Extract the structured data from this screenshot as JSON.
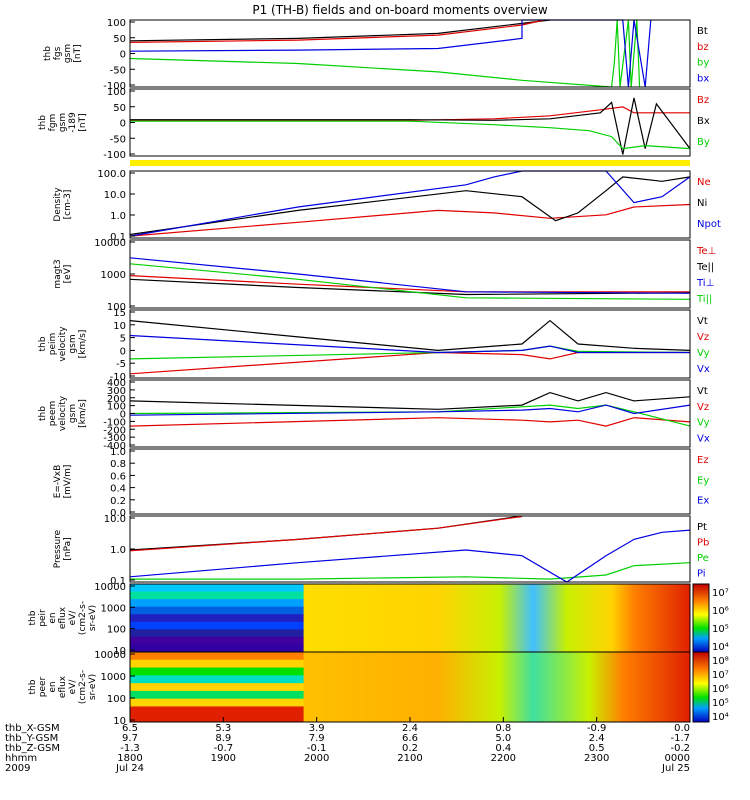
{
  "title": "P1 (TH-B) fields and on-board moments overview",
  "colors": {
    "black": "#000000",
    "red": "#e00000",
    "green": "#00d000",
    "blue": "#0000e0",
    "yellow": "#ffee00"
  },
  "chart_data": [
    {
      "type": "line",
      "ylabel": [
        "thb",
        "fgs",
        "gsm",
        "[nT]"
      ],
      "yticks": [
        "100",
        "50",
        "0",
        "-50",
        "-100"
      ],
      "ylim": [
        -100,
        100
      ],
      "legend": [
        {
          "label": "Bt",
          "color": "black"
        },
        {
          "label": "bz",
          "color": "red"
        },
        {
          "label": "by",
          "color": "green"
        },
        {
          "label": "bx",
          "color": "blue"
        }
      ],
      "series": [
        {
          "name": "Bt",
          "x": [
            0.0,
            0.3,
            0.55,
            0.7,
            0.75
          ],
          "y": [
            38,
            45,
            60,
            90,
            100
          ]
        },
        {
          "name": "bz",
          "x": [
            0.0,
            0.3,
            0.55,
            0.7,
            0.74
          ],
          "y": [
            33,
            40,
            55,
            85,
            100
          ]
        },
        {
          "name": "by",
          "x": [
            0.0,
            0.3,
            0.55,
            0.7,
            0.86,
            0.865,
            0.87,
            0.875,
            0.89,
            0.895,
            0.905,
            0.91
          ],
          "y": [
            -15,
            -30,
            -55,
            -80,
            -100,
            -25,
            100,
            -100,
            100,
            -100,
            100,
            -100
          ]
        },
        {
          "name": "bx",
          "x": [
            0.0,
            0.3,
            0.55,
            0.7,
            0.7,
            0.76,
            0.88,
            0.89,
            0.9,
            0.92,
            0.93
          ],
          "y": [
            7,
            10,
            15,
            45,
            100,
            100,
            100,
            -100,
            100,
            -100,
            100
          ]
        }
      ]
    },
    {
      "type": "line",
      "ylabel": [
        "thb",
        "fgm",
        "gsm",
        "-189",
        "[nT]"
      ],
      "yticks": [
        "100",
        "50",
        "0",
        "-50",
        "-100"
      ],
      "ylim": [
        -125,
        100
      ],
      "legend": [
        {
          "label": "Bz",
          "color": "red"
        },
        {
          "label": "Bx",
          "color": "black"
        },
        {
          "label": "By",
          "color": "green"
        }
      ],
      "series": [
        {
          "name": "Bz",
          "x": [
            0.0,
            0.5,
            0.65,
            0.75,
            0.84,
            0.88,
            0.9,
            1.0
          ],
          "y": [
            -5,
            -5,
            0,
            10,
            30,
            40,
            20,
            20
          ]
        },
        {
          "name": "Bx",
          "x": [
            0.0,
            0.5,
            0.65,
            0.75,
            0.84,
            0.86,
            0.88,
            0.9,
            0.92,
            0.94,
            1.0
          ],
          "y": [
            -3,
            -3,
            -5,
            0,
            20,
            55,
            -120,
            70,
            -100,
            50,
            -100
          ]
        },
        {
          "name": "By",
          "x": [
            0.0,
            0.5,
            0.65,
            0.75,
            0.82,
            0.86,
            0.88,
            0.92,
            1.0
          ],
          "y": [
            -8,
            -8,
            -20,
            -30,
            -40,
            -60,
            -100,
            -90,
            -100
          ]
        }
      ]
    },
    {
      "type": "line",
      "ylabel": [
        "Density",
        "[cm-3]"
      ],
      "yticks": [
        "100.0",
        "10.0",
        "1.0",
        "0.1"
      ],
      "ylim": [
        0.08,
        200
      ],
      "scale": "log",
      "legend": [
        {
          "label": "Ne",
          "color": "red"
        },
        {
          "label": "Ni",
          "color": "black"
        },
        {
          "label": "Npot",
          "color": "blue"
        }
      ],
      "series": [
        {
          "name": "Ne",
          "x": [
            0.0,
            0.3,
            0.55,
            0.65,
            0.75,
            0.85,
            0.9,
            1.0
          ],
          "y": [
            0.1,
            0.5,
            2,
            1.5,
            0.8,
            1.2,
            3,
            4
          ]
        },
        {
          "name": "Ni",
          "x": [
            0.0,
            0.3,
            0.6,
            0.7,
            0.76,
            0.8,
            0.85,
            0.88,
            0.95,
            1.0
          ],
          "y": [
            0.12,
            2,
            20,
            10,
            0.6,
            1.5,
            20,
            100,
            60,
            100
          ]
        },
        {
          "name": "Npot",
          "x": [
            0.0,
            0.3,
            0.6,
            0.65,
            0.7,
            0.85,
            0.9,
            0.95,
            1.0
          ],
          "y": [
            0.1,
            3,
            40,
            100,
            200,
            200,
            5,
            10,
            100
          ]
        }
      ]
    },
    {
      "type": "line",
      "ylabel": [
        "magt3",
        "[eV]"
      ],
      "yticks": [
        "10000",
        "1000",
        "100"
      ],
      "ylim": [
        100,
        10000
      ],
      "scale": "log",
      "legend": [
        {
          "label": "Te⊥",
          "color": "red"
        },
        {
          "label": "Te||",
          "color": "black"
        },
        {
          "label": "Ti⊥",
          "color": "blue"
        },
        {
          "label": "Ti||",
          "color": "green"
        }
      ],
      "series": [
        {
          "name": "Te⊥",
          "x": [
            0.0,
            0.3,
            0.6,
            1.0
          ],
          "y": [
            900,
            500,
            300,
            300
          ]
        },
        {
          "name": "Te||",
          "x": [
            0.0,
            0.3,
            0.6,
            1.0
          ],
          "y": [
            700,
            400,
            250,
            280
          ]
        },
        {
          "name": "Ti⊥",
          "x": [
            0.0,
            0.3,
            0.6,
            1.0
          ],
          "y": [
            3000,
            1000,
            300,
            270
          ]
        },
        {
          "name": "Ti||",
          "x": [
            0.0,
            0.3,
            0.6,
            1.0
          ],
          "y": [
            2000,
            700,
            200,
            180
          ]
        }
      ]
    },
    {
      "type": "line",
      "ylabel": [
        "thb",
        "peim",
        "velocity",
        "gsm",
        "[km/s]"
      ],
      "yticks": [
        "15",
        "10",
        "5",
        "0",
        "-5",
        "-10"
      ],
      "ylim": [
        -12,
        20
      ],
      "legend": [
        {
          "label": "Vt",
          "color": "black"
        },
        {
          "label": "Vz",
          "color": "red"
        },
        {
          "label": "Vy",
          "color": "green"
        },
        {
          "label": "Vx",
          "color": "blue"
        }
      ],
      "series": [
        {
          "name": "Vt",
          "x": [
            0.0,
            0.55,
            0.7,
            0.75,
            0.8,
            0.9,
            1.0
          ],
          "y": [
            15,
            1,
            4,
            15,
            4,
            2,
            1
          ]
        },
        {
          "name": "Vz",
          "x": [
            0.0,
            0.55,
            0.7,
            0.75,
            0.8,
            1.0
          ],
          "y": [
            -10,
            0,
            -1,
            -3,
            0,
            0
          ]
        },
        {
          "name": "Vy",
          "x": [
            0.0,
            0.55,
            0.7,
            0.75,
            0.8,
            1.0
          ],
          "y": [
            -3,
            0,
            1,
            3,
            0.5,
            0
          ]
        },
        {
          "name": "Vx",
          "x": [
            0.0,
            0.55,
            0.7,
            0.75,
            0.8,
            1.0
          ],
          "y": [
            8,
            0,
            1,
            3,
            0,
            0
          ]
        }
      ]
    },
    {
      "type": "line",
      "ylabel": [
        "thb",
        "peem",
        "velocity",
        "gsm",
        "[km/s]"
      ],
      "yticks": [
        "400",
        "300",
        "200",
        "100",
        "0",
        "-100",
        "-200",
        "-300",
        "-400"
      ],
      "ylim": [
        -400,
        400
      ],
      "legend": [
        {
          "label": "Vt",
          "color": "black"
        },
        {
          "label": "Vz",
          "color": "red"
        },
        {
          "label": "Vy",
          "color": "green"
        },
        {
          "label": "Vx",
          "color": "blue"
        }
      ],
      "series": [
        {
          "name": "Vt",
          "x": [
            0.0,
            0.55,
            0.7,
            0.75,
            0.8,
            0.85,
            0.9,
            1.0
          ],
          "y": [
            150,
            50,
            100,
            250,
            150,
            250,
            150,
            200
          ]
        },
        {
          "name": "Vz",
          "x": [
            0.0,
            0.55,
            0.7,
            0.75,
            0.8,
            0.85,
            0.9,
            1.0
          ],
          "y": [
            -150,
            -50,
            -80,
            -100,
            -80,
            -150,
            -50,
            -100
          ]
        },
        {
          "name": "Vy",
          "x": [
            0.0,
            0.55,
            0.7,
            0.75,
            0.8,
            0.85,
            0.9,
            1.0
          ],
          "y": [
            0,
            20,
            80,
            100,
            60,
            100,
            20,
            -150
          ]
        },
        {
          "name": "Vx",
          "x": [
            0.0,
            0.55,
            0.7,
            0.75,
            0.8,
            0.85,
            0.9,
            1.0
          ],
          "y": [
            -20,
            20,
            40,
            60,
            20,
            100,
            0,
            100
          ]
        }
      ]
    },
    {
      "type": "line",
      "ylabel": [
        "E=-VxB",
        "[mV/m]"
      ],
      "yticks": [
        "1.0",
        "0.8",
        "0.6",
        "0.4",
        "0.2",
        "0.0"
      ],
      "ylim": [
        0,
        1
      ],
      "legend": [
        {
          "label": "Ez",
          "color": "red"
        },
        {
          "label": "Ey",
          "color": "green"
        },
        {
          "label": "Ex",
          "color": "blue"
        }
      ],
      "series": []
    },
    {
      "type": "line",
      "ylabel": [
        "Pressure",
        "[nPa]"
      ],
      "yticks": [
        "10.0",
        "1.0",
        "0.1"
      ],
      "ylim": [
        0.03,
        20
      ],
      "scale": "log",
      "legend": [
        {
          "label": "Pt",
          "color": "black"
        },
        {
          "label": "Pb",
          "color": "red"
        },
        {
          "label": "Pe",
          "color": "green"
        },
        {
          "label": "Pi",
          "color": "blue"
        }
      ],
      "series": [
        {
          "name": "Pt",
          "x": [
            0.0,
            0.3,
            0.55,
            0.7
          ],
          "y": [
            0.7,
            2,
            6,
            20
          ]
        },
        {
          "name": "Pb",
          "x": [
            0.0,
            0.3,
            0.55,
            0.7
          ],
          "y": [
            0.65,
            2,
            6,
            19
          ]
        },
        {
          "name": "Pe",
          "x": [
            0.0,
            0.3,
            0.6,
            0.75,
            0.85,
            0.9,
            1.0
          ],
          "y": [
            0.04,
            0.04,
            0.05,
            0.04,
            0.06,
            0.15,
            0.2
          ]
        },
        {
          "name": "Pi",
          "x": [
            0.0,
            0.3,
            0.6,
            0.7,
            0.78,
            0.85,
            0.9,
            0.95,
            1.0
          ],
          "y": [
            0.05,
            0.2,
            0.7,
            0.4,
            0.03,
            0.4,
            2,
            4,
            5
          ]
        }
      ]
    },
    {
      "type": "heatmap",
      "ylabel": [
        "thb",
        "peir",
        "en",
        "eflux",
        "eV/",
        "(cm2-s-",
        "sr-eV)"
      ],
      "yticks": [
        "10000",
        "1000",
        "100",
        "10"
      ],
      "colorbar_ticks": [
        "10⁷",
        "10⁶",
        "10⁵",
        "10⁴"
      ]
    },
    {
      "type": "heatmap",
      "ylabel": [
        "thb",
        "peer",
        "en",
        "eflux",
        "eV/",
        "(cm2-s-",
        "sr-eV)"
      ],
      "yticks": [
        "10000",
        "1000",
        "100",
        "10"
      ],
      "colorbar_ticks": [
        "10⁸",
        "10⁷",
        "10⁶",
        "10⁵",
        "10⁴"
      ]
    }
  ],
  "x_axis": {
    "row_labels": [
      "thb_X-GSM",
      "thb_Y-GSM",
      "thb_Z-GSM",
      "hhmm",
      "2009"
    ],
    "columns": [
      {
        "x": 0.0,
        "vals": [
          "6.5",
          "9.7",
          "-1.3",
          "1800",
          "Jul 24"
        ]
      },
      {
        "x": 0.2,
        "vals": [
          "5.3",
          "8.9",
          "-0.7",
          "1900",
          ""
        ]
      },
      {
        "x": 0.4,
        "vals": [
          "3.9",
          "7.9",
          "-0.1",
          "2000",
          ""
        ]
      },
      {
        "x": 0.6,
        "vals": [
          "2.4",
          "6.6",
          "0.2",
          "2100",
          ""
        ]
      },
      {
        "x": 0.8,
        "vals": [
          "0.8",
          "5.0",
          "0.4",
          "2200",
          ""
        ]
      },
      {
        "x": 1.0,
        "vals": [
          "-0.9",
          "2.4",
          "0.5",
          "2300",
          ""
        ]
      },
      {
        "x": 1.2,
        "vals": [
          "0.0",
          "-1.7",
          "-0.2",
          "0000",
          "Jul 25"
        ]
      }
    ]
  }
}
